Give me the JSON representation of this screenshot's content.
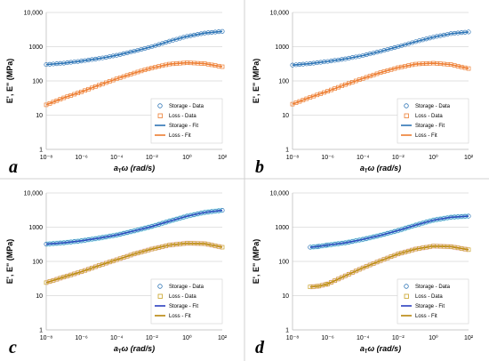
{
  "panel_labels": [
    "a",
    "b",
    "c",
    "d"
  ],
  "y_tick_labels": [
    "1",
    "10",
    "100",
    "1000",
    "10,000"
  ],
  "x_tick_labels": [
    "10⁻⁸",
    "10⁻⁶",
    "10⁻⁴",
    "10⁻²",
    "10⁰",
    "10²"
  ],
  "ylabel": "E', E\" (MPa)",
  "xlabel_a": "a",
  "xlabel_sub": "T",
  "xlabel_rest": "ω (rad/s)",
  "legend": [
    "Storage - Data",
    "Loss - Data",
    "Storage - Fit",
    "Loss - Fit"
  ],
  "colors": {
    "storage_data": "#2e75b6",
    "loss_data_ab": "#ed7d31",
    "loss_data_cd": "#c9a227",
    "storage_fit_ab": "#2e75b6",
    "storage_fit_cd": "#2b3fbf",
    "loss_fit_ab": "#ed7d31",
    "loss_fit_cd": "#b8860b",
    "band_storage": "#8fe8ef",
    "band_loss": "#f6c3e8"
  },
  "chart_data": [
    {
      "type": "scatter",
      "panel": "a",
      "xscale": "log",
      "yscale": "log",
      "xlim": [
        1e-08,
        100
      ],
      "ylim": [
        1,
        10000
      ],
      "x_log10": [
        -8,
        -7,
        -6,
        -5,
        -4,
        -3,
        -2,
        -1,
        0,
        1,
        2
      ],
      "series": [
        {
          "name": "Storage - Data",
          "values": [
            300,
            330,
            380,
            450,
            560,
            740,
            1000,
            1450,
            2000,
            2500,
            2800
          ]
        },
        {
          "name": "Loss - Data",
          "values": [
            20,
            32,
            48,
            75,
            115,
            170,
            240,
            310,
            340,
            320,
            260
          ]
        },
        {
          "name": "Storage - Fit",
          "values": [
            300,
            330,
            380,
            450,
            560,
            740,
            1000,
            1450,
            2000,
            2500,
            2800
          ]
        },
        {
          "name": "Loss - Fit",
          "values": [
            20,
            32,
            48,
            75,
            115,
            170,
            240,
            310,
            340,
            320,
            260
          ]
        }
      ]
    },
    {
      "type": "scatter",
      "panel": "b",
      "xscale": "log",
      "yscale": "log",
      "xlim": [
        1e-08,
        100
      ],
      "ylim": [
        1,
        10000
      ],
      "x_log10": [
        -8,
        -7,
        -6,
        -5,
        -4,
        -3,
        -2,
        -1,
        0,
        1,
        2
      ],
      "series": [
        {
          "name": "Storage - Data",
          "values": [
            290,
            320,
            370,
            440,
            550,
            730,
            1000,
            1400,
            1900,
            2400,
            2700
          ]
        },
        {
          "name": "Loss - Data",
          "values": [
            21,
            33,
            50,
            78,
            118,
            175,
            245,
            310,
            330,
            300,
            230
          ]
        },
        {
          "name": "Storage - Fit",
          "values": [
            290,
            320,
            370,
            440,
            550,
            730,
            1000,
            1400,
            1900,
            2400,
            2700
          ]
        },
        {
          "name": "Loss - Fit",
          "values": [
            21,
            33,
            50,
            78,
            118,
            175,
            245,
            310,
            330,
            300,
            230
          ]
        }
      ]
    },
    {
      "type": "scatter",
      "panel": "c",
      "xscale": "log",
      "yscale": "log",
      "xlim": [
        1e-08,
        100
      ],
      "ylim": [
        1,
        10000
      ],
      "x_log10": [
        -8,
        -7,
        -6,
        -5,
        -4,
        -3,
        -2,
        -1,
        0,
        1,
        2
      ],
      "series": [
        {
          "name": "Storage - Data",
          "values": [
            320,
            350,
            400,
            480,
            590,
            780,
            1050,
            1500,
            2100,
            2700,
            3100
          ]
        },
        {
          "name": "Loss - Data",
          "values": [
            24,
            35,
            50,
            76,
            112,
            165,
            230,
            300,
            340,
            330,
            260
          ]
        },
        {
          "name": "Storage - Fit",
          "values": [
            320,
            350,
            400,
            480,
            590,
            780,
            1050,
            1500,
            2100,
            2700,
            3100
          ]
        },
        {
          "name": "Loss - Fit",
          "values": [
            24,
            35,
            50,
            76,
            112,
            165,
            230,
            300,
            340,
            330,
            260
          ]
        }
      ]
    },
    {
      "type": "scatter",
      "panel": "d",
      "xscale": "log",
      "yscale": "log",
      "xlim": [
        1e-08,
        100
      ],
      "ylim": [
        1,
        10000
      ],
      "x_log10": [
        -7,
        -6.5,
        -6,
        -5,
        -4,
        -3,
        -2,
        -1,
        0,
        1,
        2
      ],
      "series": [
        {
          "name": "Storage - Data",
          "values": [
            260,
            275,
            300,
            350,
            440,
            580,
            800,
            1150,
            1600,
            1950,
            2100
          ]
        },
        {
          "name": "Loss - Data",
          "values": [
            18,
            19,
            22,
            38,
            65,
            105,
            165,
            230,
            280,
            270,
            220
          ]
        },
        {
          "name": "Storage - Fit",
          "values": [
            260,
            275,
            300,
            350,
            440,
            580,
            800,
            1150,
            1600,
            1950,
            2100
          ]
        },
        {
          "name": "Loss - Fit",
          "values": [
            18,
            19,
            22,
            38,
            65,
            105,
            165,
            230,
            280,
            270,
            220
          ]
        }
      ]
    }
  ]
}
